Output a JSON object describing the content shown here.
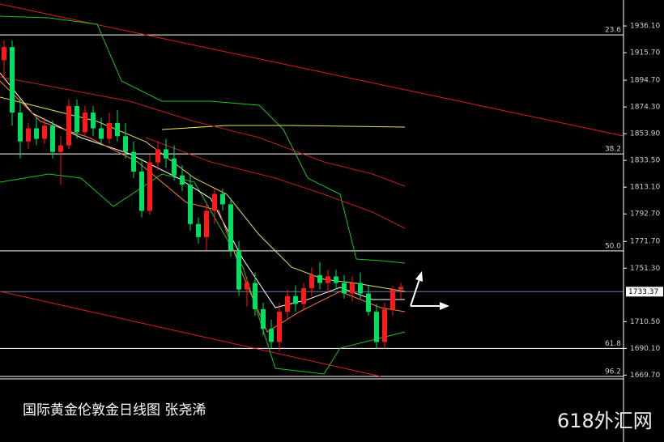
{
  "chart_data": {
    "type": "candlestick",
    "up_color": "#ff1a1a",
    "down_color": "#00e060",
    "open": [
      1910,
      1920,
      1870,
      1848,
      1858,
      1850,
      1860,
      1840,
      1845,
      1875,
      1855,
      1870,
      1858,
      1850,
      1862,
      1852,
      1840,
      1825,
      1795,
      1832,
      1842,
      1835,
      1822,
      1815,
      1785,
      1775,
      1795,
      1808,
      1800,
      1765,
      1735,
      1740,
      1720,
      1705,
      1695,
      1718,
      1730,
      1724,
      1736,
      1746,
      1740,
      1745,
      1740,
      1732,
      1740,
      1732,
      1718,
      1695,
      1720,
      1735
    ],
    "high": [
      1925,
      1925,
      1880,
      1862,
      1866,
      1866,
      1864,
      1852,
      1880,
      1880,
      1875,
      1875,
      1866,
      1870,
      1872,
      1862,
      1848,
      1835,
      1838,
      1848,
      1850,
      1845,
      1830,
      1822,
      1790,
      1800,
      1812,
      1812,
      1805,
      1772,
      1745,
      1748,
      1725,
      1712,
      1725,
      1735,
      1738,
      1740,
      1752,
      1756,
      1750,
      1750,
      1746,
      1745,
      1748,
      1738,
      1724,
      1725,
      1738,
      1740
    ],
    "low": [
      1895,
      1860,
      1835,
      1842,
      1845,
      1846,
      1835,
      1815,
      1842,
      1850,
      1852,
      1852,
      1845,
      1846,
      1848,
      1835,
      1820,
      1790,
      1792,
      1826,
      1828,
      1818,
      1810,
      1780,
      1770,
      1765,
      1785,
      1795,
      1760,
      1730,
      1722,
      1715,
      1700,
      1690,
      1688,
      1712,
      1718,
      1720,
      1730,
      1735,
      1732,
      1735,
      1728,
      1726,
      1728,
      1715,
      1690,
      1690,
      1715,
      1728
    ],
    "close": [
      1920,
      1870,
      1848,
      1858,
      1850,
      1860,
      1840,
      1845,
      1875,
      1855,
      1870,
      1858,
      1850,
      1862,
      1852,
      1840,
      1825,
      1795,
      1832,
      1842,
      1835,
      1822,
      1815,
      1785,
      1775,
      1795,
      1808,
      1800,
      1765,
      1735,
      1740,
      1720,
      1705,
      1695,
      1718,
      1730,
      1724,
      1736,
      1746,
      1740,
      1745,
      1740,
      1732,
      1740,
      1732,
      1718,
      1695,
      1720,
      1735,
      1737
    ],
    "ylim": [
      1668.7,
      1955.9
    ],
    "yticks": [
      {
        "value": 1936.1,
        "label": "1936.10"
      },
      {
        "value": 1915.7,
        "label": "1915.70"
      },
      {
        "value": 1894.7,
        "label": "1894.70"
      },
      {
        "value": 1874.3,
        "label": "1874.30"
      },
      {
        "value": 1853.9,
        "label": "1853.90"
      },
      {
        "value": 1833.5,
        "label": "1833.50"
      },
      {
        "value": 1813.1,
        "label": "1813.10"
      },
      {
        "value": 1792.7,
        "label": "1792.70"
      },
      {
        "value": 1771.7,
        "label": "1771.70"
      },
      {
        "value": 1751.3,
        "label": "1751.30"
      },
      {
        "value": 1710.5,
        "label": "1710.50"
      },
      {
        "value": 1690.1,
        "label": "1690.10"
      },
      {
        "value": 1669.7,
        "label": "1669.70"
      }
    ],
    "fib_levels": [
      {
        "label": "23.6",
        "price": 1929.3
      },
      {
        "label": "38.2",
        "price": 1838.5
      },
      {
        "label": "50.0",
        "price": 1764.5
      },
      {
        "label": "61.8",
        "price": 1690.1
      },
      {
        "label": "96.2",
        "price": 1668.7
      }
    ],
    "current_price": 1733.37
  },
  "caption": "国际黄金伦敦金日线图 张尧浠",
  "watermark": "618外汇网"
}
